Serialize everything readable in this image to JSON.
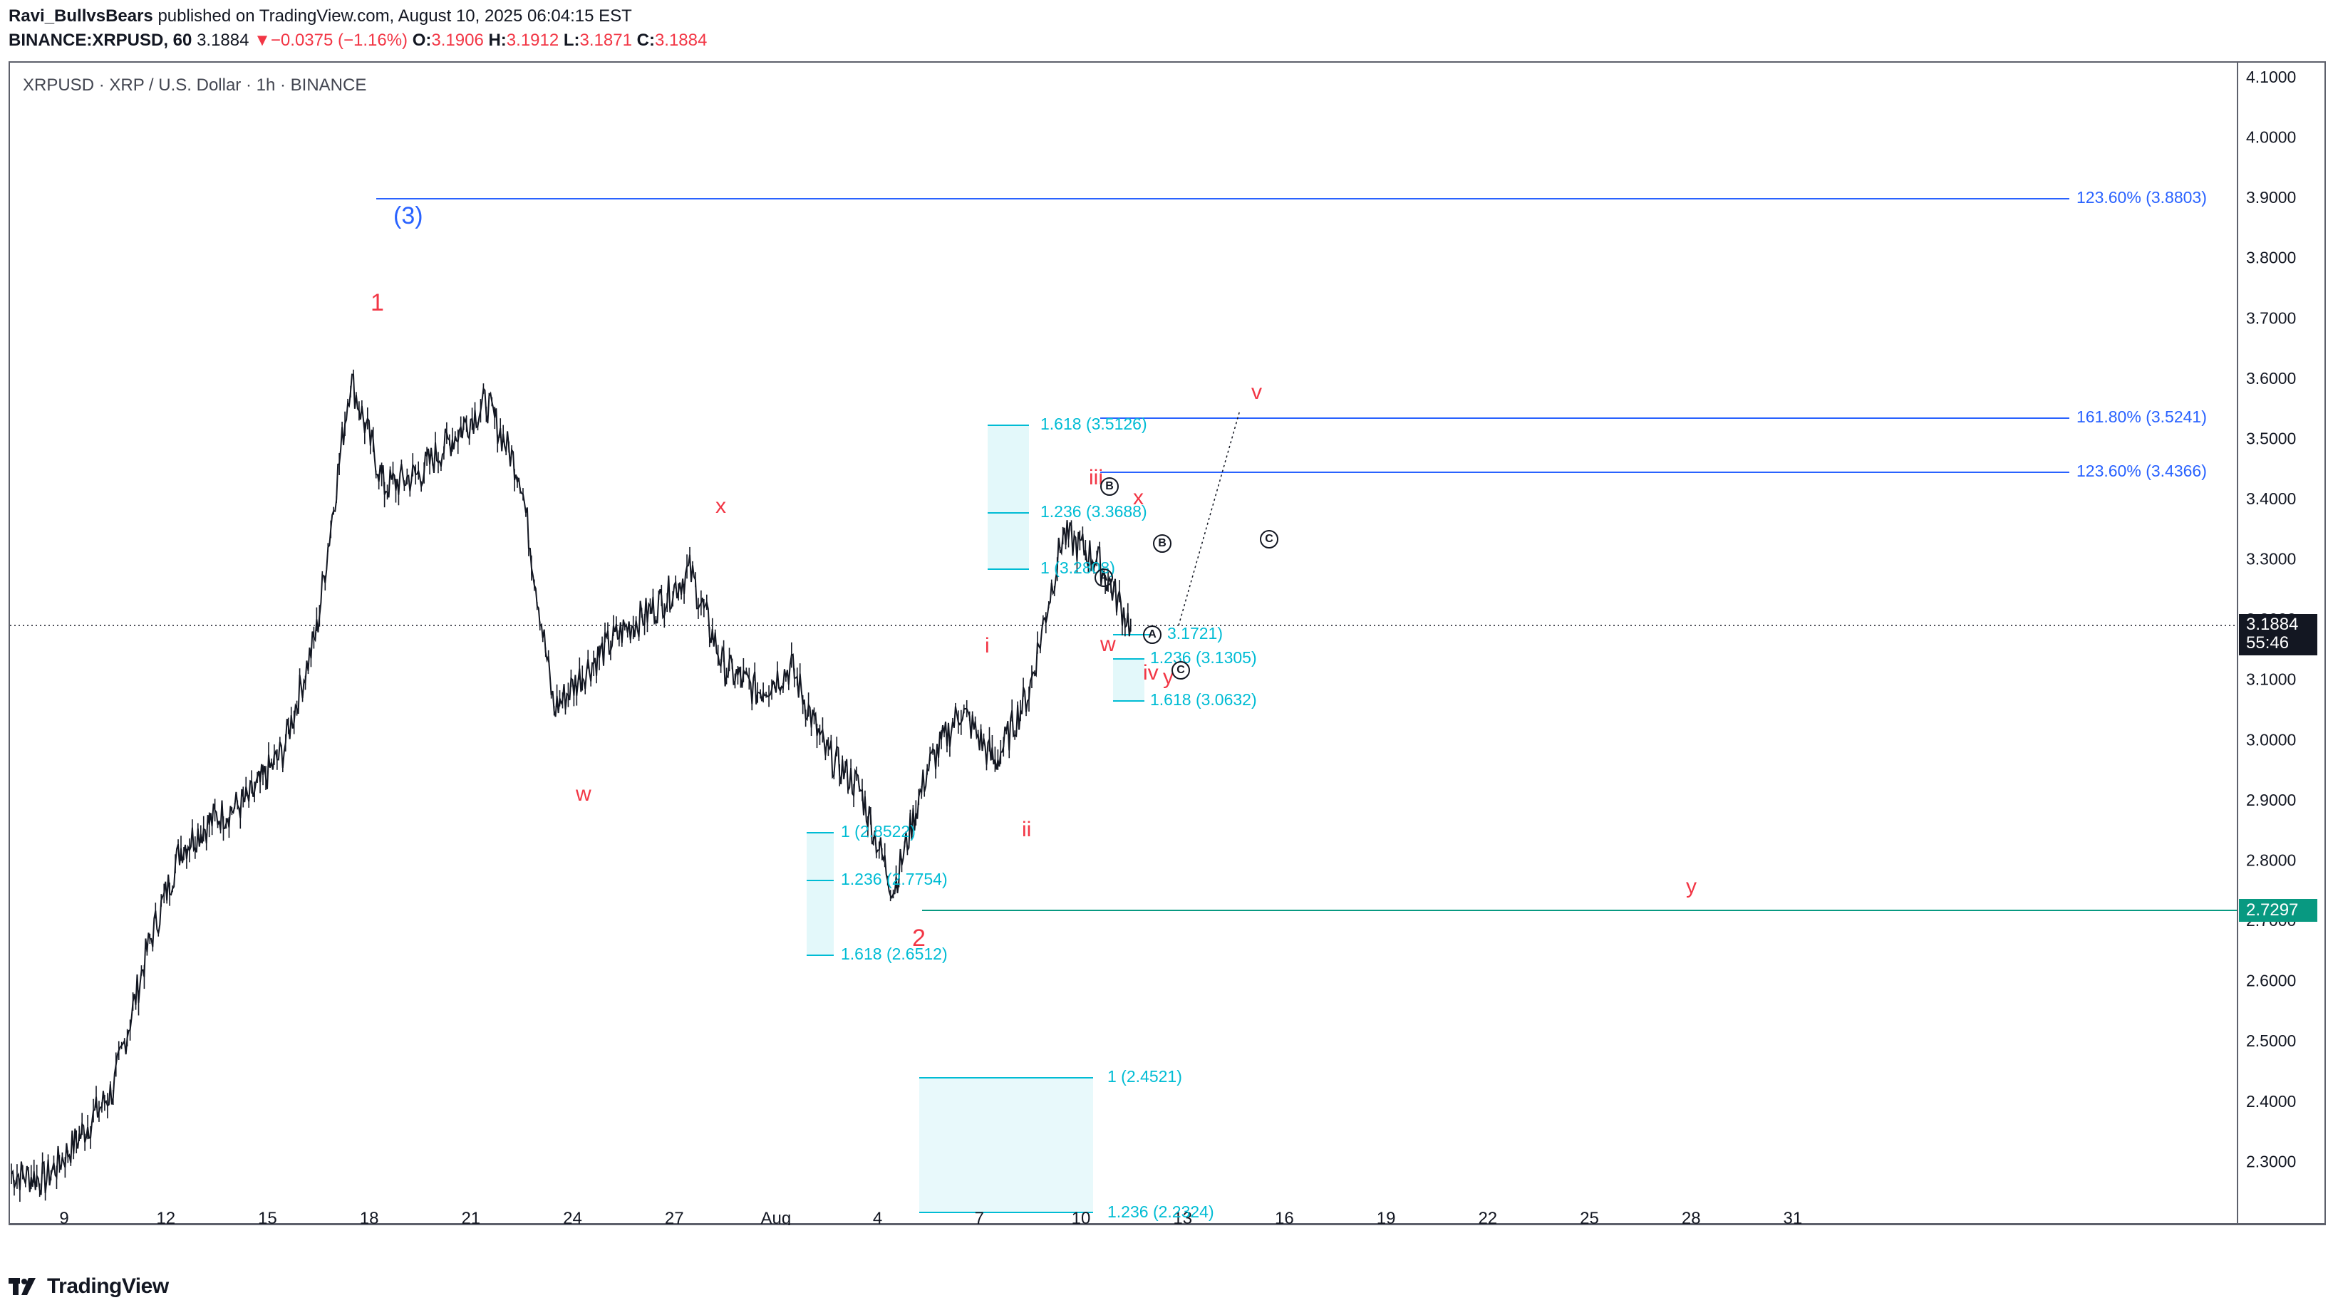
{
  "header": {
    "author": "Ravi_BullvsBears",
    "published_text": "published on TradingView.com, August 10, 2025 06:04:15 EST",
    "symbol_line": "BINANCE:XRPUSD, 60",
    "last": "3.1884",
    "change_arrow": "▼",
    "change": "−0.0375 (−1.16%)",
    "o_label": "O:",
    "o_value": "3.1906",
    "h_label": "H:",
    "h_value": "3.1912",
    "l_label": "L:",
    "l_value": "3.1871",
    "c_label": "C:",
    "c_value": "3.1884"
  },
  "chart_title": "XRPUSD · XRP / U.S. Dollar · 1h · BINANCE",
  "footer": {
    "brand": "TradingView",
    "logo_icon": "tradingview-logo-icon"
  },
  "price_axis": {
    "ticks": [
      "4.1000",
      "4.0000",
      "3.9000",
      "3.8000",
      "3.7000",
      "3.6000",
      "3.5000",
      "3.4000",
      "3.3000",
      "3.2000",
      "3.1000",
      "3.0000",
      "2.9000",
      "2.8000",
      "2.7000",
      "2.6000",
      "2.5000",
      "2.4000",
      "2.3000"
    ],
    "current_price": "3.1884",
    "countdown": "55:46",
    "level_tag": "2.7297"
  },
  "time_axis": {
    "ticks": [
      "9",
      "12",
      "15",
      "18",
      "21",
      "24",
      "27",
      "Aug",
      "4",
      "7",
      "10",
      "13",
      "16",
      "19",
      "22",
      "25",
      "28",
      "31"
    ]
  },
  "colors": {
    "up_candle": "#000000",
    "grid": "#ffffff",
    "blue_line": "#2962ff",
    "fib_cyan": "#00bcd4",
    "fib_fill": "#e0f7fa",
    "wave_red": "#f23645",
    "green_line": "#089981",
    "current_price_bg": "#131722"
  },
  "annotations": {
    "wave_3": "(3)",
    "wave_1": "1",
    "wave_2": "2",
    "w1": "w",
    "x1": "x",
    "y1": "y",
    "i": "i",
    "ii": "ii",
    "iii": "iii",
    "iv": "iv",
    "v": "v",
    "w2": "w",
    "x2": "x",
    "y2": "y",
    "circle_a1": "A",
    "circle_b1": "B",
    "circle_c1": "C",
    "circle_a2": "A",
    "circle_b2": "B",
    "circle_c2": "C"
  },
  "fib_labels": {
    "f1": "1.618 (3.5126)",
    "f2": "1.236 (3.3688)",
    "f3": "1 (3.2808)",
    "f4": "3.1721)",
    "f5": "1.236 (3.1305)",
    "f6": "1.618 (3.0632)",
    "f7": "1 (2.8522)",
    "f8": "1.236 (2.7754)",
    "f9": "1.618 (2.6512)",
    "f10": "1 (2.4521)",
    "f11": "1.236 (2.2324)"
  },
  "level_labels": {
    "l1": "123.60% (3.8803)",
    "l2": "161.80% (3.5241)",
    "l3": "123.60% (3.4366)"
  },
  "chart_data": {
    "type": "line",
    "title": "XRPUSD · XRP / U.S. Dollar · 1h · BINANCE",
    "x": [
      "Jul 8",
      "Jul 9",
      "Jul 10",
      "Jul 11",
      "Jul 12",
      "Jul 13",
      "Jul 14",
      "Jul 15",
      "Jul 16",
      "Jul 17",
      "Jul 18",
      "Jul 19",
      "Jul 20",
      "Jul 21",
      "Jul 22",
      "Jul 23",
      "Jul 24",
      "Jul 25",
      "Jul 26",
      "Jul 27",
      "Jul 28",
      "Jul 29",
      "Jul 30",
      "Jul 31",
      "Aug 1",
      "Aug 2",
      "Aug 3",
      "Aug 4",
      "Aug 5",
      "Aug 6",
      "Aug 7",
      "Aug 8",
      "Aug 9",
      "Aug 10"
    ],
    "series": [
      {
        "values": [
          2.28,
          2.27,
          2.34,
          2.42,
          2.65,
          2.82,
          2.87,
          2.9,
          2.98,
          3.18,
          3.6,
          3.42,
          3.44,
          3.5,
          3.56,
          3.44,
          3.05,
          3.12,
          3.18,
          3.22,
          3.28,
          3.12,
          3.08,
          3.12,
          2.98,
          2.92,
          2.75,
          2.95,
          3.05,
          2.96,
          3.08,
          3.34,
          3.3,
          3.19
        ]
      }
    ],
    "ylim": [
      2.22,
      4.1
    ],
    "xlim": [
      "Jul 7",
      "Aug 31"
    ]
  }
}
